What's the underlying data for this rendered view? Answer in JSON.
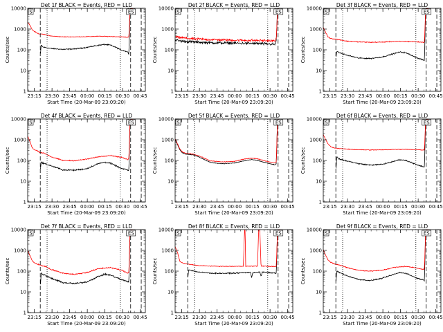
{
  "chart_data": {
    "type": "line",
    "colors": {
      "events": "#000000",
      "lld": "#ff0000",
      "background": "#ffffff",
      "axis": "#000000"
    },
    "common": {
      "ylabel": "Counts/sec",
      "yscale": "log",
      "ylim": [
        1,
        10000
      ],
      "y_ticks": [
        1,
        10,
        100,
        1000,
        10000
      ],
      "y_tick_labels": [
        "1",
        "10",
        "100",
        "1000",
        "10000"
      ],
      "x_units": "minutes since 23:09:20",
      "xlim": [
        0,
        100
      ],
      "x_ticks": [
        5.67,
        20.67,
        35.67,
        50.67,
        65.67,
        80.67,
        95.67
      ],
      "x_tick_labels": [
        "23:15",
        "23:30",
        "23:45",
        "00:00",
        "00:15",
        "00:30",
        "00:45"
      ],
      "xlabel": "Start Time (20-Mar-09 23:09:20)",
      "marker_lines": [
        {
          "x": 10.7,
          "style": "dashed"
        },
        {
          "x": 16.5,
          "style": "dotted"
        },
        {
          "x": 78.7,
          "style": "dotted"
        },
        {
          "x": 87.5,
          "style": "dashed"
        },
        {
          "x": 96.5,
          "style": "dashed"
        }
      ],
      "corner_labels": {
        "start": "S",
        "end": "ES"
      },
      "legend_note": "BLACK = Events, RED = LLD"
    },
    "panels": [
      {
        "title": "Det 1f BLACK = Events, RED = LLD",
        "series": [
          {
            "name": "Events",
            "color": "#000000",
            "noise": 0.05,
            "x": [
              0,
              10,
              10.7,
              11.5,
              13,
              20,
              30,
              40,
              50,
              60,
              65,
              70,
              75,
              80,
              85,
              86,
              87,
              88,
              90
            ],
            "y": [
              null,
              null,
              50,
              170,
              135,
              115,
              105,
              110,
              130,
              165,
              180,
              170,
              130,
              95,
              80,
              60,
              9000,
              9600,
              10000
            ]
          },
          {
            "name": "LLD",
            "color": "#ff0000",
            "noise": 0.03,
            "x": [
              0,
              2,
              4,
              6,
              8,
              10,
              13,
              16,
              20,
              30,
              40,
              50,
              60,
              70,
              80,
              85,
              86,
              87,
              88,
              90
            ],
            "y": [
              2200,
              1500,
              900,
              750,
              640,
              580,
              560,
              520,
              460,
              420,
              420,
              430,
              450,
              440,
              420,
              400,
              420,
              9000,
              9600,
              10000
            ]
          }
        ]
      },
      {
        "title": "Det 2f BLACK = Events, RED = LLD",
        "series": [
          {
            "name": "Events",
            "color": "#000000",
            "noise": 0.12,
            "x": [
              0,
              2,
              6,
              10,
              15,
              20,
              30,
              40,
              50,
              60,
              70,
              80,
              85,
              86,
              87,
              88
            ],
            "y": [
              300,
              280,
              260,
              250,
              240,
              230,
              220,
              215,
              210,
              205,
              200,
              190,
              180,
              300,
              9000,
              10000
            ]
          },
          {
            "name": "LLD",
            "color": "#ff0000",
            "noise": 0.12,
            "x": [
              0,
              2,
              6,
              10,
              15,
              20,
              30,
              40,
              50,
              60,
              70,
              80,
              85,
              86,
              87,
              88
            ],
            "y": [
              420,
              400,
              380,
              360,
              340,
              330,
              310,
              300,
              290,
              285,
              280,
              275,
              265,
              350,
              9000,
              10000
            ]
          }
        ]
      },
      {
        "title": "Det 3f BLACK = Events, RED = LLD",
        "series": [
          {
            "name": "Events",
            "color": "#000000",
            "noise": 0.05,
            "x": [
              0,
              10,
              10.7,
              11.5,
              13,
              20,
              30,
              40,
              50,
              60,
              65,
              70,
              75,
              80,
              85,
              86,
              87,
              88,
              90
            ],
            "y": [
              null,
              null,
              40,
              80,
              75,
              55,
              40,
              38,
              45,
              65,
              78,
              72,
              55,
              40,
              32,
              30,
              9000,
              9600,
              10000
            ]
          },
          {
            "name": "LLD",
            "color": "#ff0000",
            "noise": 0.04,
            "x": [
              0,
              2,
              4,
              6,
              8,
              10,
              13,
              16,
              20,
              30,
              40,
              50,
              60,
              70,
              80,
              85,
              86,
              87,
              88,
              90
            ],
            "y": [
              1200,
              700,
              420,
              360,
              340,
              330,
              310,
              290,
              260,
              240,
              230,
              235,
              250,
              250,
              240,
              230,
              240,
              9000,
              9600,
              10000
            ]
          }
        ]
      },
      {
        "title": "Det 4f BLACK = Events, RED = LLD",
        "series": [
          {
            "name": "Events",
            "color": "#000000",
            "noise": 0.06,
            "x": [
              0,
              10,
              10.7,
              11.5,
              13,
              20,
              30,
              40,
              50,
              60,
              65,
              70,
              75,
              80,
              85,
              86,
              87,
              88,
              90
            ],
            "y": [
              null,
              null,
              30,
              85,
              75,
              55,
              35,
              34,
              40,
              70,
              82,
              75,
              55,
              40,
              35,
              32,
              9000,
              9600,
              10000
            ]
          },
          {
            "name": "LLD",
            "color": "#ff0000",
            "noise": 0.04,
            "x": [
              0,
              2,
              4,
              6,
              8,
              10,
              13,
              16,
              20,
              30,
              40,
              50,
              60,
              70,
              80,
              85,
              86,
              87,
              88,
              90
            ],
            "y": [
              1500,
              800,
              400,
              320,
              300,
              250,
              230,
              200,
              150,
              100,
              98,
              115,
              150,
              175,
              140,
              110,
              130,
              9000,
              9600,
              10000
            ]
          }
        ]
      },
      {
        "title": "Det 5f BLACK = Events, RED = LLD",
        "series": [
          {
            "name": "Events",
            "color": "#000000",
            "noise": 0.03,
            "x": [
              0,
              2,
              4,
              6,
              8,
              10,
              13,
              16,
              20,
              30,
              40,
              50,
              60,
              65,
              70,
              80,
              85,
              86,
              87,
              88
            ],
            "y": [
              1000,
              600,
              330,
              240,
              210,
              200,
              195,
              180,
              150,
              80,
              70,
              75,
              100,
              110,
              100,
              70,
              62,
              70,
              9000,
              10000
            ]
          },
          {
            "name": "LLD",
            "color": "#ff0000",
            "noise": 0.03,
            "x": [
              0,
              2,
              4,
              6,
              8,
              10,
              13,
              16,
              20,
              30,
              40,
              50,
              60,
              65,
              70,
              80,
              85,
              86,
              87,
              88
            ],
            "y": [
              1100,
              650,
              360,
              260,
              230,
              220,
              210,
              200,
              170,
              95,
              85,
              90,
              120,
              130,
              120,
              85,
              75,
              85,
              9000,
              10000
            ]
          }
        ]
      },
      {
        "title": "Det 6f BLACK = Events, RED = LLD",
        "series": [
          {
            "name": "Events",
            "color": "#000000",
            "noise": 0.05,
            "x": [
              0,
              10,
              10.7,
              11.5,
              13,
              20,
              30,
              40,
              50,
              60,
              65,
              70,
              75,
              80,
              85,
              86,
              87,
              88,
              90
            ],
            "y": [
              null,
              null,
              30,
              150,
              120,
              95,
              70,
              60,
              65,
              90,
              110,
              100,
              80,
              60,
              50,
              48,
              9000,
              9600,
              10000
            ]
          },
          {
            "name": "LLD",
            "color": "#ff0000",
            "noise": 0.03,
            "x": [
              0,
              2,
              4,
              6,
              8,
              10,
              13,
              16,
              20,
              30,
              40,
              50,
              60,
              70,
              80,
              85,
              86,
              87,
              88,
              90
            ],
            "y": [
              1800,
              1000,
              650,
              480,
              420,
              400,
              380,
              370,
              350,
              330,
              320,
              325,
              340,
              345,
              330,
              320,
              330,
              9000,
              9600,
              10000
            ]
          }
        ]
      },
      {
        "title": "Det 7f BLACK = Events, RED = LLD",
        "series": [
          {
            "name": "Events",
            "color": "#000000",
            "noise": 0.07,
            "x": [
              0,
              10,
              10.7,
              11.5,
              13,
              20,
              30,
              40,
              50,
              60,
              65,
              70,
              75,
              80,
              85,
              86,
              87,
              88,
              90
            ],
            "y": [
              null,
              null,
              15,
              80,
              70,
              45,
              28,
              25,
              30,
              55,
              70,
              65,
              50,
              38,
              32,
              30,
              9000,
              9600,
              10000
            ]
          },
          {
            "name": "LLD",
            "color": "#ff0000",
            "noise": 0.05,
            "x": [
              0,
              2,
              4,
              6,
              8,
              10,
              13,
              16,
              20,
              30,
              40,
              50,
              60,
              70,
              80,
              85,
              86,
              87,
              88,
              90
            ],
            "y": [
              1000,
              550,
              300,
              250,
              220,
              200,
              180,
              160,
              120,
              80,
              70,
              85,
              130,
              150,
              110,
              80,
              90,
              9000,
              9600,
              10000
            ]
          }
        ]
      },
      {
        "title": "Det 8f BLACK = Events, RED = LLD",
        "series": [
          {
            "name": "Events",
            "color": "#000000",
            "noise": 0.05,
            "x": [
              0,
              10,
              10.7,
              11.5,
              13,
              20,
              30,
              40,
              50,
              60,
              64,
              65,
              66,
              70,
              72,
              73,
              74,
              80,
              85,
              86,
              87,
              88,
              90
            ],
            "y": [
              null,
              null,
              40,
              120,
              110,
              90,
              80,
              78,
              80,
              85,
              88,
              50,
              85,
              88,
              90,
              55,
              90,
              85,
              80,
              78,
              9000,
              9600,
              10000
            ]
          },
          {
            "name": "LLD",
            "color": "#ff0000",
            "noise": 0.03,
            "x": [
              0,
              2,
              4,
              6,
              8,
              10,
              13,
              16,
              20,
              30,
              40,
              50,
              58,
              59,
              59.5,
              60,
              61,
              62,
              70,
              71,
              72,
              73,
              74,
              80,
              85,
              86,
              87,
              88,
              90
            ],
            "y": [
              1500,
              800,
              300,
              250,
              230,
              220,
              210,
              200,
              185,
              175,
              170,
              170,
              172,
              10000,
              10000,
              172,
              172,
              172,
              175,
              10000,
              10000,
              175,
              175,
              170,
              165,
              170,
              9000,
              9600,
              10000
            ]
          }
        ]
      },
      {
        "title": "Det 9f BLACK = Events, RED = LLD",
        "series": [
          {
            "name": "Events",
            "color": "#000000",
            "noise": 0.05,
            "x": [
              0,
              10,
              10.7,
              11.5,
              13,
              20,
              30,
              40,
              50,
              60,
              65,
              70,
              75,
              80,
              85,
              86,
              87,
              88,
              90
            ],
            "y": [
              null,
              null,
              25,
              100,
              90,
              60,
              40,
              35,
              45,
              70,
              85,
              80,
              60,
              45,
              38,
              35,
              9000,
              9600,
              10000
            ]
          },
          {
            "name": "LLD",
            "color": "#ff0000",
            "noise": 0.04,
            "x": [
              0,
              2,
              4,
              6,
              8,
              10,
              13,
              16,
              20,
              30,
              40,
              50,
              60,
              70,
              80,
              85,
              86,
              87,
              88,
              90
            ],
            "y": [
              1100,
              600,
              350,
              270,
              240,
              220,
              200,
              180,
              150,
              110,
              100,
              110,
              150,
              170,
              140,
              120,
              130,
              9000,
              9600,
              10000
            ]
          }
        ]
      }
    ]
  }
}
